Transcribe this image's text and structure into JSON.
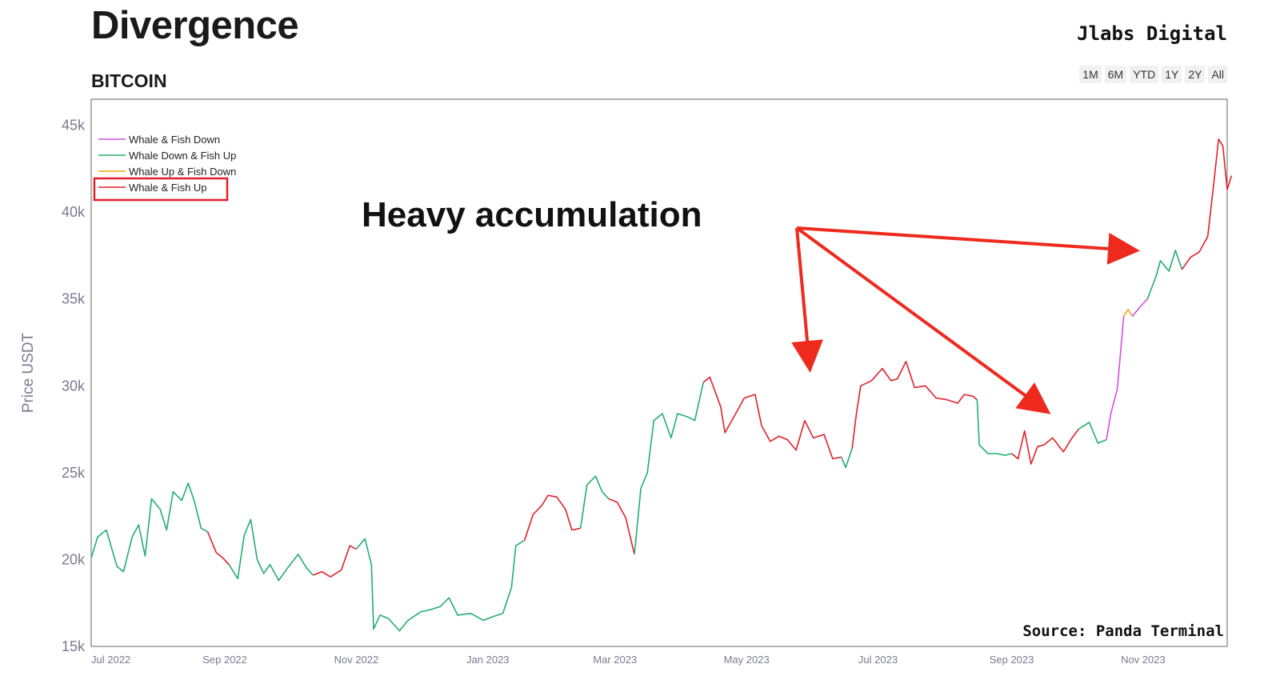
{
  "header": {
    "title": "Divergence",
    "subtitle": "BITCOIN",
    "brand": "Jlabs Digital",
    "range_buttons": [
      "1M",
      "6M",
      "YTD",
      "1Y",
      "2Y",
      "All"
    ]
  },
  "annotation": "Heavy accumulation",
  "source": "Source: Panda Terminal",
  "colors": {
    "whale_fish_down": "#d34fe0",
    "whale_down_fish_up": "#22ad72",
    "whale_up_fish_down": "#f2a51c",
    "whale_fish_up": "#e0202a",
    "arrow": "#ee2a1e",
    "highlight_box": "#e0202a"
  },
  "chart_data": {
    "type": "line",
    "ylabel": "Price USDT",
    "ylim": [
      15000,
      46500
    ],
    "y_ticks": [
      15000,
      20000,
      25000,
      30000,
      35000,
      40000,
      45000
    ],
    "y_tick_labels": [
      "15k",
      "20k",
      "25k",
      "30k",
      "35k",
      "40k",
      "45k"
    ],
    "x_range": [
      "2022-07-01",
      "2023-12-10"
    ],
    "x_ticks": [
      "2022-07-01",
      "2022-09-01",
      "2022-11-01",
      "2023-01-01",
      "2023-03-01",
      "2023-05-01",
      "2023-07-01",
      "2023-09-01",
      "2023-11-01"
    ],
    "x_tick_labels": [
      "Jul 2022",
      "Sep 2022",
      "Nov 2022",
      "Jan 2023",
      "Mar 2023",
      "May 2023",
      "Jul 2023",
      "Sep 2023",
      "Nov 2023"
    ],
    "legend_position": "top-left",
    "legend": [
      {
        "name": "Whale & Fish Down",
        "key": "whale_fish_down"
      },
      {
        "name": "Whale Down & Fish Up",
        "key": "whale_down_fish_up"
      },
      {
        "name": "Whale Up & Fish Down",
        "key": "whale_up_fish_down"
      },
      {
        "name": "Whale & Fish Up",
        "key": "whale_fish_up",
        "highlighted": true
      }
    ],
    "segments": [
      {
        "series": "whale_down_fish_up",
        "points": [
          [
            "2022-07-01",
            20100
          ],
          [
            "2022-07-04",
            21300
          ],
          [
            "2022-07-08",
            21700
          ],
          [
            "2022-07-13",
            19600
          ],
          [
            "2022-07-16",
            19300
          ],
          [
            "2022-07-20",
            21300
          ],
          [
            "2022-07-23",
            22000
          ],
          [
            "2022-07-26",
            20200
          ],
          [
            "2022-07-29",
            23500
          ],
          [
            "2022-08-02",
            22900
          ],
          [
            "2022-08-05",
            21700
          ],
          [
            "2022-08-08",
            23900
          ],
          [
            "2022-08-12",
            23400
          ],
          [
            "2022-08-15",
            24400
          ],
          [
            "2022-08-18",
            23300
          ],
          [
            "2022-08-21",
            21800
          ],
          [
            "2022-08-24",
            21600
          ]
        ]
      },
      {
        "series": "whale_fish_up",
        "points": [
          [
            "2022-08-24",
            21600
          ],
          [
            "2022-08-28",
            20400
          ],
          [
            "2022-08-31",
            20100
          ],
          [
            "2022-09-03",
            19700
          ]
        ]
      },
      {
        "series": "whale_down_fish_up",
        "points": [
          [
            "2022-09-03",
            19700
          ],
          [
            "2022-09-07",
            18900
          ],
          [
            "2022-09-10",
            21400
          ],
          [
            "2022-09-13",
            22300
          ],
          [
            "2022-09-16",
            20000
          ],
          [
            "2022-09-19",
            19200
          ],
          [
            "2022-09-22",
            19700
          ],
          [
            "2022-09-26",
            18800
          ],
          [
            "2022-09-30",
            19500
          ],
          [
            "2022-10-05",
            20300
          ],
          [
            "2022-10-09",
            19500
          ],
          [
            "2022-10-12",
            19100
          ]
        ]
      },
      {
        "series": "whale_fish_up",
        "points": [
          [
            "2022-10-12",
            19100
          ],
          [
            "2022-10-16",
            19300
          ],
          [
            "2022-10-20",
            19000
          ],
          [
            "2022-10-25",
            19400
          ],
          [
            "2022-10-29",
            20800
          ],
          [
            "2022-11-01",
            20600
          ]
        ]
      },
      {
        "series": "whale_down_fish_up",
        "points": [
          [
            "2022-11-01",
            20600
          ],
          [
            "2022-11-05",
            21200
          ],
          [
            "2022-11-08",
            19700
          ],
          [
            "2022-11-09",
            16000
          ],
          [
            "2022-11-12",
            16800
          ],
          [
            "2022-11-16",
            16600
          ],
          [
            "2022-11-21",
            15900
          ],
          [
            "2022-11-25",
            16500
          ],
          [
            "2022-12-01",
            17000
          ],
          [
            "2022-12-05",
            17100
          ],
          [
            "2022-12-10",
            17300
          ],
          [
            "2022-12-14",
            17800
          ],
          [
            "2022-12-18",
            16800
          ],
          [
            "2022-12-24",
            16900
          ],
          [
            "2022-12-30",
            16500
          ],
          [
            "2023-01-03",
            16700
          ],
          [
            "2023-01-08",
            16900
          ],
          [
            "2023-01-12",
            18400
          ],
          [
            "2023-01-14",
            20800
          ],
          [
            "2023-01-18",
            21100
          ]
        ]
      },
      {
        "series": "whale_fish_up",
        "points": [
          [
            "2023-01-18",
            21100
          ],
          [
            "2023-01-22",
            22600
          ],
          [
            "2023-01-26",
            23100
          ],
          [
            "2023-01-29",
            23700
          ],
          [
            "2023-02-02",
            23600
          ],
          [
            "2023-02-06",
            22900
          ],
          [
            "2023-02-09",
            21700
          ],
          [
            "2023-02-13",
            21800
          ]
        ]
      },
      {
        "series": "whale_down_fish_up",
        "points": [
          [
            "2023-02-13",
            21800
          ],
          [
            "2023-02-16",
            24300
          ],
          [
            "2023-02-20",
            24800
          ],
          [
            "2023-02-23",
            23900
          ],
          [
            "2023-02-26",
            23500
          ]
        ]
      },
      {
        "series": "whale_fish_up",
        "points": [
          [
            "2023-02-26",
            23500
          ],
          [
            "2023-03-02",
            23300
          ],
          [
            "2023-03-06",
            22400
          ],
          [
            "2023-03-10",
            20300
          ]
        ]
      },
      {
        "series": "whale_down_fish_up",
        "points": [
          [
            "2023-03-10",
            20300
          ],
          [
            "2023-03-13",
            24100
          ],
          [
            "2023-03-16",
            25000
          ],
          [
            "2023-03-19",
            28000
          ],
          [
            "2023-03-23",
            28400
          ],
          [
            "2023-03-27",
            27000
          ],
          [
            "2023-03-30",
            28400
          ],
          [
            "2023-04-04",
            28200
          ],
          [
            "2023-04-07",
            28000
          ],
          [
            "2023-04-11",
            30200
          ]
        ]
      },
      {
        "series": "whale_fish_up",
        "points": [
          [
            "2023-04-11",
            30200
          ],
          [
            "2023-04-14",
            30500
          ],
          [
            "2023-04-19",
            28800
          ],
          [
            "2023-04-21",
            27300
          ],
          [
            "2023-04-26",
            28400
          ],
          [
            "2023-04-30",
            29300
          ],
          [
            "2023-05-05",
            29500
          ],
          [
            "2023-05-08",
            27700
          ],
          [
            "2023-05-12",
            26800
          ],
          [
            "2023-05-16",
            27100
          ],
          [
            "2023-05-20",
            26900
          ],
          [
            "2023-05-24",
            26300
          ],
          [
            "2023-05-28",
            28000
          ],
          [
            "2023-06-01",
            27000
          ],
          [
            "2023-06-06",
            27200
          ],
          [
            "2023-06-10",
            25800
          ],
          [
            "2023-06-14",
            25900
          ]
        ]
      },
      {
        "series": "whale_down_fish_up",
        "points": [
          [
            "2023-06-14",
            25900
          ],
          [
            "2023-06-16",
            25300
          ],
          [
            "2023-06-19",
            26400
          ]
        ]
      },
      {
        "series": "whale_fish_up",
        "points": [
          [
            "2023-06-19",
            26400
          ],
          [
            "2023-06-21",
            28400
          ],
          [
            "2023-06-23",
            30000
          ],
          [
            "2023-06-28",
            30300
          ],
          [
            "2023-07-03",
            31000
          ],
          [
            "2023-07-07",
            30300
          ],
          [
            "2023-07-10",
            30400
          ],
          [
            "2023-07-14",
            31400
          ],
          [
            "2023-07-18",
            29900
          ],
          [
            "2023-07-23",
            30000
          ],
          [
            "2023-07-28",
            29300
          ],
          [
            "2023-08-02",
            29200
          ],
          [
            "2023-08-07",
            29000
          ],
          [
            "2023-08-10",
            29500
          ],
          [
            "2023-08-14",
            29400
          ],
          [
            "2023-08-16",
            29200
          ]
        ]
      },
      {
        "series": "whale_down_fish_up",
        "points": [
          [
            "2023-08-16",
            29200
          ],
          [
            "2023-08-17",
            26600
          ],
          [
            "2023-08-21",
            26100
          ],
          [
            "2023-08-25",
            26100
          ],
          [
            "2023-08-29",
            26000
          ],
          [
            "2023-09-01",
            26100
          ]
        ]
      },
      {
        "series": "whale_fish_up",
        "points": [
          [
            "2023-09-01",
            26100
          ],
          [
            "2023-09-04",
            25800
          ],
          [
            "2023-09-07",
            27400
          ],
          [
            "2023-09-10",
            25500
          ],
          [
            "2023-09-13",
            26500
          ],
          [
            "2023-09-16",
            26600
          ],
          [
            "2023-09-20",
            27000
          ],
          [
            "2023-09-25",
            26200
          ],
          [
            "2023-09-29",
            27000
          ],
          [
            "2023-10-02",
            27500
          ]
        ]
      },
      {
        "series": "whale_down_fish_up",
        "points": [
          [
            "2023-10-02",
            27500
          ],
          [
            "2023-10-07",
            27900
          ],
          [
            "2023-10-11",
            26700
          ],
          [
            "2023-10-15",
            26900
          ]
        ]
      },
      {
        "series": "whale_fish_down",
        "points": [
          [
            "2023-10-15",
            26900
          ],
          [
            "2023-10-17",
            28400
          ],
          [
            "2023-10-20",
            29800
          ],
          [
            "2023-10-23",
            34000
          ]
        ]
      },
      {
        "series": "whale_up_fish_down",
        "points": [
          [
            "2023-10-23",
            34000
          ],
          [
            "2023-10-25",
            34400
          ],
          [
            "2023-10-27",
            34000
          ]
        ]
      },
      {
        "series": "whale_fish_down",
        "points": [
          [
            "2023-10-27",
            34000
          ],
          [
            "2023-10-31",
            34600
          ],
          [
            "2023-11-03",
            35000
          ]
        ]
      },
      {
        "series": "whale_down_fish_up",
        "points": [
          [
            "2023-11-03",
            35000
          ],
          [
            "2023-11-07",
            36300
          ],
          [
            "2023-11-09",
            37200
          ],
          [
            "2023-11-13",
            36600
          ],
          [
            "2023-11-16",
            37800
          ],
          [
            "2023-11-19",
            36700
          ]
        ]
      },
      {
        "series": "whale_fish_up",
        "points": [
          [
            "2023-11-19",
            36700
          ],
          [
            "2023-11-23",
            37400
          ],
          [
            "2023-11-27",
            37700
          ],
          [
            "2023-12-01",
            38600
          ],
          [
            "2023-12-04",
            41900
          ],
          [
            "2023-12-06",
            44200
          ],
          [
            "2023-12-08",
            43800
          ],
          [
            "2023-12-10",
            41300
          ],
          [
            "2023-12-12",
            42100
          ]
        ]
      }
    ]
  }
}
